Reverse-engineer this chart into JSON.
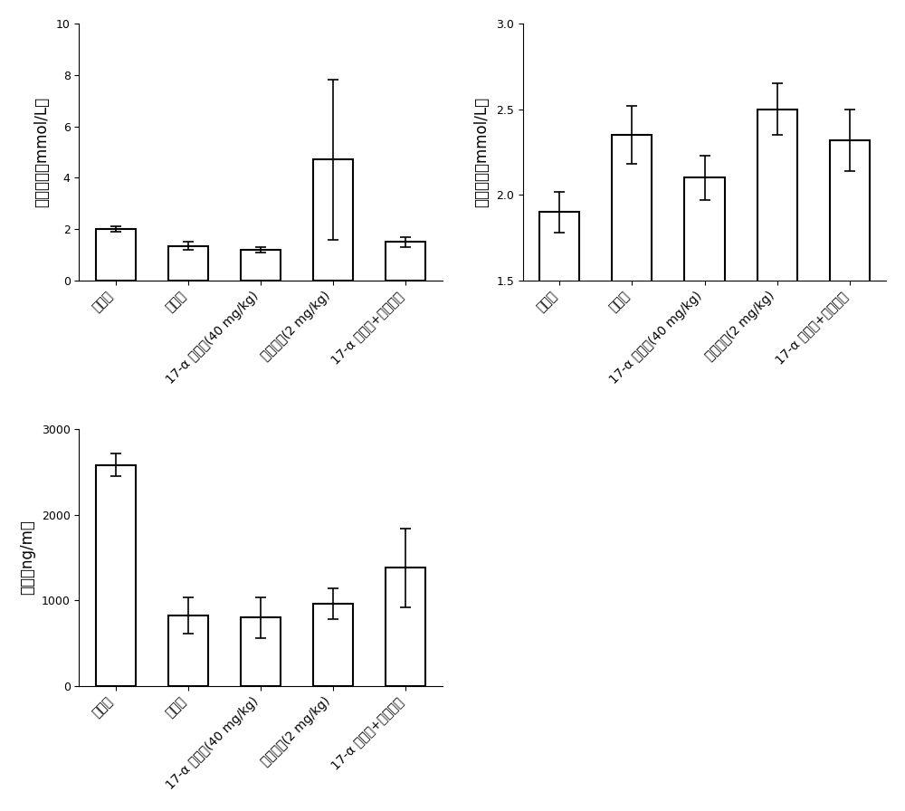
{
  "categories": [
    "对照组",
    "模型组",
    "17-α 羟孕酮(40 mg/kg)",
    "地塞米松(2 mg/kg)",
    "17-α 羟孕酮+地塞米松"
  ],
  "plot1": {
    "ylabel": "甘油三酯（mmol/L）",
    "values": [
      2.0,
      1.35,
      1.2,
      4.7,
      1.5
    ],
    "errors": [
      0.1,
      0.15,
      0.1,
      3.1,
      0.2
    ],
    "ylim": [
      0,
      10
    ],
    "yticks": [
      0,
      2,
      4,
      6,
      8,
      10
    ]
  },
  "plot2": {
    "ylabel": "总胆固醇（mmol/L）",
    "values": [
      1.9,
      2.35,
      2.1,
      2.5,
      2.32
    ],
    "errors": [
      0.12,
      0.17,
      0.13,
      0.15,
      0.18
    ],
    "ylim": [
      1.5,
      3.0
    ],
    "yticks": [
      1.5,
      2.0,
      2.5,
      3.0
    ]
  },
  "plot3": {
    "ylabel": "瘦素（ng/m）",
    "values": [
      2580,
      820,
      800,
      960,
      1380
    ],
    "errors": [
      130,
      210,
      240,
      180,
      460
    ],
    "ylim": [
      0,
      3000
    ],
    "yticks": [
      0,
      1000,
      2000,
      3000
    ]
  },
  "bar_color": "#ffffff",
  "bar_edgecolor": "#000000",
  "bar_linewidth": 1.5,
  "capsize": 4,
  "tick_labelsize": 9,
  "ylabel_fontsize": 12,
  "background_color": "#ffffff"
}
